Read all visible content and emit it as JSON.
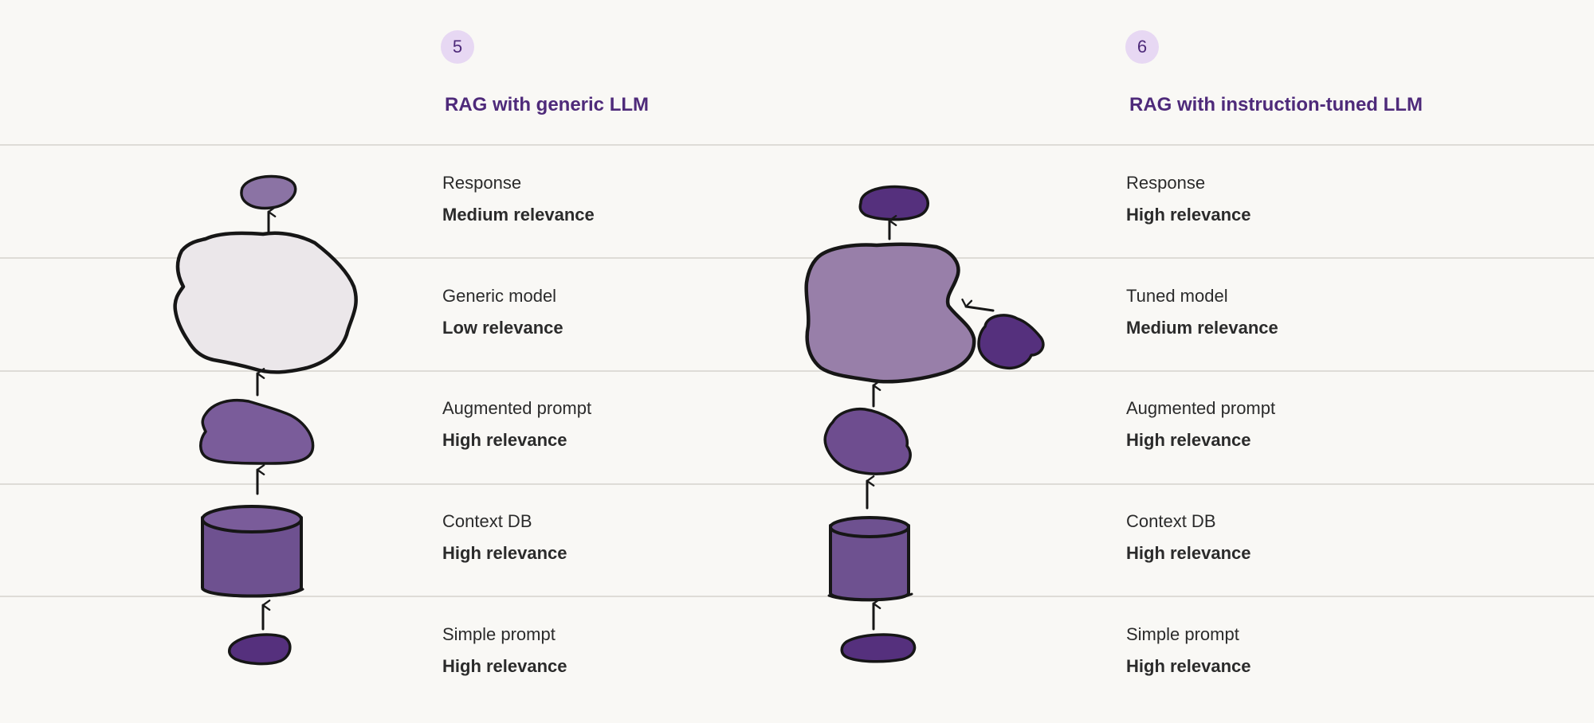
{
  "columns": [
    {
      "number": "5",
      "title": "RAG with generic LLM",
      "rows": [
        {
          "label": "Response",
          "relevance": "Medium relevance"
        },
        {
          "label": "Generic model",
          "relevance": "Low relevance"
        },
        {
          "label": "Augmented prompt",
          "relevance": "High relevance"
        },
        {
          "label": "Context DB",
          "relevance": "High relevance"
        },
        {
          "label": "Simple prompt",
          "relevance": "High relevance"
        }
      ]
    },
    {
      "number": "6",
      "title": "RAG with instruction-tuned LLM",
      "rows": [
        {
          "label": "Response",
          "relevance": "High relevance"
        },
        {
          "label": "Tuned model",
          "relevance": "Medium relevance"
        },
        {
          "label": "Augmented prompt",
          "relevance": "High relevance"
        },
        {
          "label": "Context DB",
          "relevance": "High relevance"
        },
        {
          "label": "Simple prompt",
          "relevance": "High relevance"
        }
      ]
    }
  ],
  "colors": {
    "accent": "#4e2a7a",
    "badge_bg": "#e7d8f3",
    "dark_purple": "#55307d",
    "mid_purple": "#6e5190",
    "light_purple": "#8b73a4",
    "pale": "#ebe7ea",
    "rule": "#dedcd7",
    "background": "#f9f8f5"
  }
}
